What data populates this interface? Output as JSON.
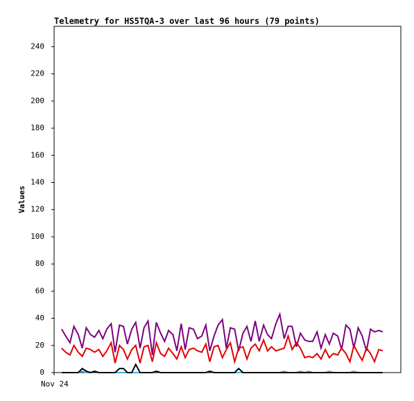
{
  "chart_data": {
    "type": "line",
    "title": "Telemetry for HS5TQA-3 over last 96 hours (79 points)",
    "ylabel": "Values",
    "xlim": [
      0,
      96
    ],
    "xticks": [
      {
        "value": 0,
        "label": "Nov 24"
      }
    ],
    "ylim": [
      0,
      255
    ],
    "yticks": [
      0,
      20,
      40,
      60,
      80,
      100,
      120,
      140,
      160,
      180,
      200,
      220,
      240
    ],
    "x": [
      2.1,
      3.2,
      4.4,
      5.5,
      6.7,
      7.8,
      8.9,
      10.1,
      11.2,
      12.4,
      13.5,
      14.6,
      15.8,
      16.9,
      18.1,
      19.2,
      20.3,
      21.5,
      22.6,
      23.8,
      24.9,
      26.0,
      27.2,
      28.3,
      29.5,
      30.6,
      31.7,
      32.9,
      34.0,
      35.2,
      36.3,
      37.4,
      38.6,
      39.7,
      40.9,
      42.0,
      43.1,
      44.3,
      45.4,
      46.6,
      47.7,
      48.8,
      50.0,
      51.1,
      52.3,
      53.4,
      54.5,
      55.7,
      56.8,
      58.0,
      59.1,
      60.2,
      61.4,
      62.5,
      63.7,
      64.8,
      65.9,
      67.1,
      68.2,
      69.4,
      70.5,
      71.6,
      72.8,
      73.9,
      75.1,
      76.2,
      77.3,
      78.5,
      79.6,
      80.8,
      81.9,
      83.0,
      84.2,
      85.3,
      86.5,
      87.6,
      88.7,
      89.9,
      91.0
    ],
    "series": [
      {
        "color": "#7a0080",
        "values": [
          32,
          27,
          22,
          34,
          28,
          18,
          33,
          28,
          26,
          31,
          25,
          32,
          36,
          15,
          35,
          34,
          21,
          32,
          37,
          18,
          33,
          38,
          13,
          37,
          29,
          23,
          31,
          28,
          16,
          36,
          17,
          33,
          32,
          25,
          27,
          35,
          16,
          27,
          35,
          39,
          18,
          33,
          32,
          16,
          29,
          34,
          23,
          38,
          23,
          35,
          28,
          25,
          36,
          43,
          25,
          34,
          34,
          19,
          29,
          24,
          23,
          23,
          30,
          18,
          28,
          21,
          29,
          27,
          17,
          35,
          32,
          18,
          33,
          27,
          16,
          32,
          30,
          31,
          30
        ]
      },
      {
        "color": "#e00000",
        "values": [
          18,
          15,
          13,
          20,
          15,
          12,
          18,
          17,
          15,
          17,
          12,
          16,
          22,
          7,
          20,
          17,
          10,
          17,
          20,
          7,
          19,
          20,
          8,
          22,
          14,
          12,
          18,
          14,
          10,
          19,
          11,
          17,
          18,
          16,
          15,
          21,
          8,
          19,
          20,
          11,
          17,
          22,
          8,
          18,
          19,
          10,
          18,
          21,
          16,
          24,
          16,
          19,
          16,
          17,
          18,
          27,
          17,
          22,
          18,
          11,
          12,
          11,
          14,
          10,
          17,
          11,
          14,
          13,
          18,
          14,
          8,
          20,
          14,
          9,
          18,
          14,
          8,
          17,
          16
        ]
      },
      {
        "color": "#40b0e0",
        "values": [
          0,
          0,
          0,
          0,
          0,
          1,
          0,
          0,
          1,
          0,
          0,
          0,
          0,
          0,
          0,
          0,
          0,
          0,
          0,
          0,
          0,
          0,
          0,
          1,
          0,
          0,
          0,
          0,
          0,
          0,
          0,
          0,
          0,
          0,
          0,
          0,
          1,
          0,
          0,
          0,
          0,
          0,
          0,
          0,
          0,
          0,
          0,
          0,
          0,
          0,
          0,
          0,
          0,
          0,
          1,
          0,
          0,
          0,
          1,
          0,
          1,
          0,
          0,
          0,
          0,
          1,
          0,
          0,
          0,
          0,
          0,
          1,
          0,
          0,
          0,
          0,
          0,
          0,
          0
        ]
      },
      {
        "color": "#000000",
        "values": [
          0,
          0,
          0,
          0,
          0,
          3,
          1,
          0,
          1,
          0,
          0,
          0,
          0,
          0,
          3,
          3,
          0,
          0,
          6,
          0,
          0,
          0,
          0,
          1,
          0,
          0,
          0,
          0,
          0,
          0,
          0,
          0,
          0,
          0,
          0,
          0,
          1,
          0,
          0,
          0,
          0,
          0,
          0,
          3,
          0,
          0,
          0,
          0,
          0,
          0,
          0,
          0,
          0,
          0,
          0,
          0,
          0,
          0,
          0,
          0,
          0,
          0,
          0,
          0,
          0,
          0,
          0,
          0,
          0,
          0,
          0,
          0,
          0,
          0,
          0,
          0,
          0,
          0,
          0
        ]
      }
    ]
  }
}
